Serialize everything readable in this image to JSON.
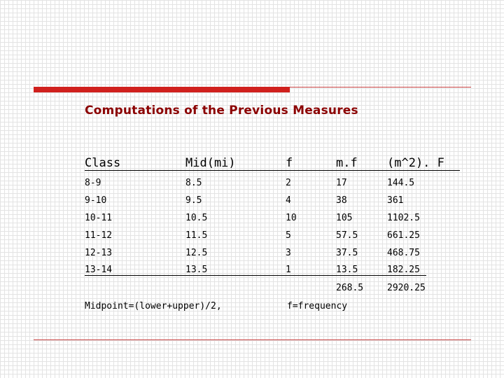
{
  "title": "Computations of the Previous Measures",
  "table": {
    "headers": [
      "Class",
      "Mid(mi)",
      "f",
      "m.f",
      "(m^2). F"
    ],
    "rows": [
      [
        "8-9",
        "8.5",
        "2",
        "17",
        "144.5"
      ],
      [
        "9-10",
        "9.5",
        "4",
        "38",
        "361"
      ],
      [
        "10-11",
        "10.5",
        "10",
        "105",
        "1102.5"
      ],
      [
        "11-12",
        "11.5",
        "5",
        "57.5",
        "661.25"
      ],
      [
        "12-13",
        "12.5",
        "3",
        "37.5",
        "468.75"
      ],
      [
        "13-14",
        "13.5",
        "1",
        "13.5",
        "182.25"
      ]
    ],
    "totals": [
      "",
      "",
      "",
      "268.5",
      "2920.25"
    ]
  },
  "notes": {
    "midpoint": "Midpoint=(lower+upper)/2,",
    "frequency": "f=frequency"
  },
  "colors": {
    "accent": "#d0201d",
    "title": "#8b0000"
  }
}
